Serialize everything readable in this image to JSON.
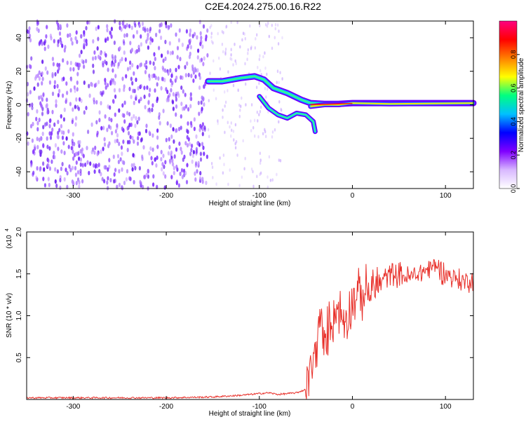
{
  "page": {
    "title": "C2E4.2024.275.00.16.R22"
  },
  "chart_data": [
    {
      "type": "heatmap",
      "xlabel": "Height of straight line (km)",
      "ylabel": "Frequency (Hz)",
      "xlim": [
        -350,
        130
      ],
      "ylim": [
        -50,
        50
      ],
      "x_ticks": [
        -300,
        -200,
        -100,
        0,
        100
      ],
      "y_ticks": [
        -40,
        -20,
        0,
        20,
        40
      ],
      "colorbar": {
        "label": "Normalized spectral amplitude",
        "ticks": [
          0.0,
          0.2,
          0.4,
          0.6,
          0.8
        ],
        "stops": [
          "#ffffff",
          "#d8b8ff",
          "#8000ff",
          "#0000ff",
          "#00c0ff",
          "#00ff80",
          "#ffff00",
          "#ff8000",
          "#ff0000",
          "#ff0080"
        ]
      },
      "description_series": [
        {
          "segment": "noise",
          "x_range": [
            -350,
            -155
          ],
          "freq_range": [
            -50,
            50
          ],
          "amplitude": 0.1
        },
        {
          "segment": "upper branch",
          "points": [
            [
              -155,
              14
            ],
            [
              -140,
              14
            ],
            [
              -120,
              16
            ],
            [
              -105,
              17
            ],
            [
              -95,
              15
            ],
            [
              -85,
              10
            ],
            [
              -70,
              7
            ],
            [
              -55,
              3
            ],
            [
              -45,
              1
            ],
            [
              -30,
              0.5
            ],
            [
              -15,
              0.5
            ],
            [
              0,
              1
            ],
            [
              130,
              1
            ]
          ]
        },
        {
          "segment": "lower branch",
          "points": [
            [
              -100,
              5
            ],
            [
              -90,
              -2
            ],
            [
              -80,
              -6
            ],
            [
              -70,
              -8
            ],
            [
              -60,
              -5
            ],
            [
              -50,
              -6
            ],
            [
              -42,
              -10
            ],
            [
              -40,
              -16
            ]
          ]
        },
        {
          "segment": "carrier",
          "points": [
            [
              -45,
              -1
            ],
            [
              -30,
              0
            ],
            [
              -15,
              0
            ],
            [
              0,
              1
            ],
            [
              40,
              0.5
            ],
            [
              130,
              1
            ]
          ]
        }
      ]
    },
    {
      "type": "line",
      "xlabel": "Height of straight line (km)",
      "ylabel": "SNR (10 * v/v)",
      "multiplier_label": "(x10",
      "multiplier_exp": "4",
      "xlim": [
        -350,
        130
      ],
      "ylim": [
        0,
        2.0
      ],
      "x_ticks": [
        -300,
        -200,
        -100,
        0,
        100
      ],
      "y_ticks": [
        0.5,
        1.0,
        1.5,
        2.0
      ],
      "y_tick_labels": [
        "0.5",
        "1.0",
        "1.5",
        "2.0"
      ],
      "series": [
        {
          "color": "#e8302a",
          "x": [
            -350,
            -300,
            -250,
            -200,
            -150,
            -120,
            -110,
            -100,
            -90,
            -80,
            -60,
            -50,
            -45,
            -40,
            -35,
            -30,
            -25,
            -20,
            -15,
            -10,
            -5,
            0,
            10,
            20,
            30,
            40,
            50,
            60,
            70,
            80,
            90,
            100,
            110,
            120,
            130
          ],
          "y": [
            0.02,
            0.02,
            0.02,
            0.02,
            0.03,
            0.05,
            0.06,
            0.07,
            0.08,
            0.06,
            0.08,
            0.12,
            0.35,
            0.5,
            1.0,
            0.6,
            0.9,
            1.0,
            1.1,
            0.95,
            1.0,
            1.2,
            1.25,
            1.3,
            1.4,
            1.5,
            1.5,
            1.45,
            1.5,
            1.55,
            1.6,
            1.5,
            1.45,
            1.4,
            1.45
          ]
        }
      ]
    }
  ]
}
